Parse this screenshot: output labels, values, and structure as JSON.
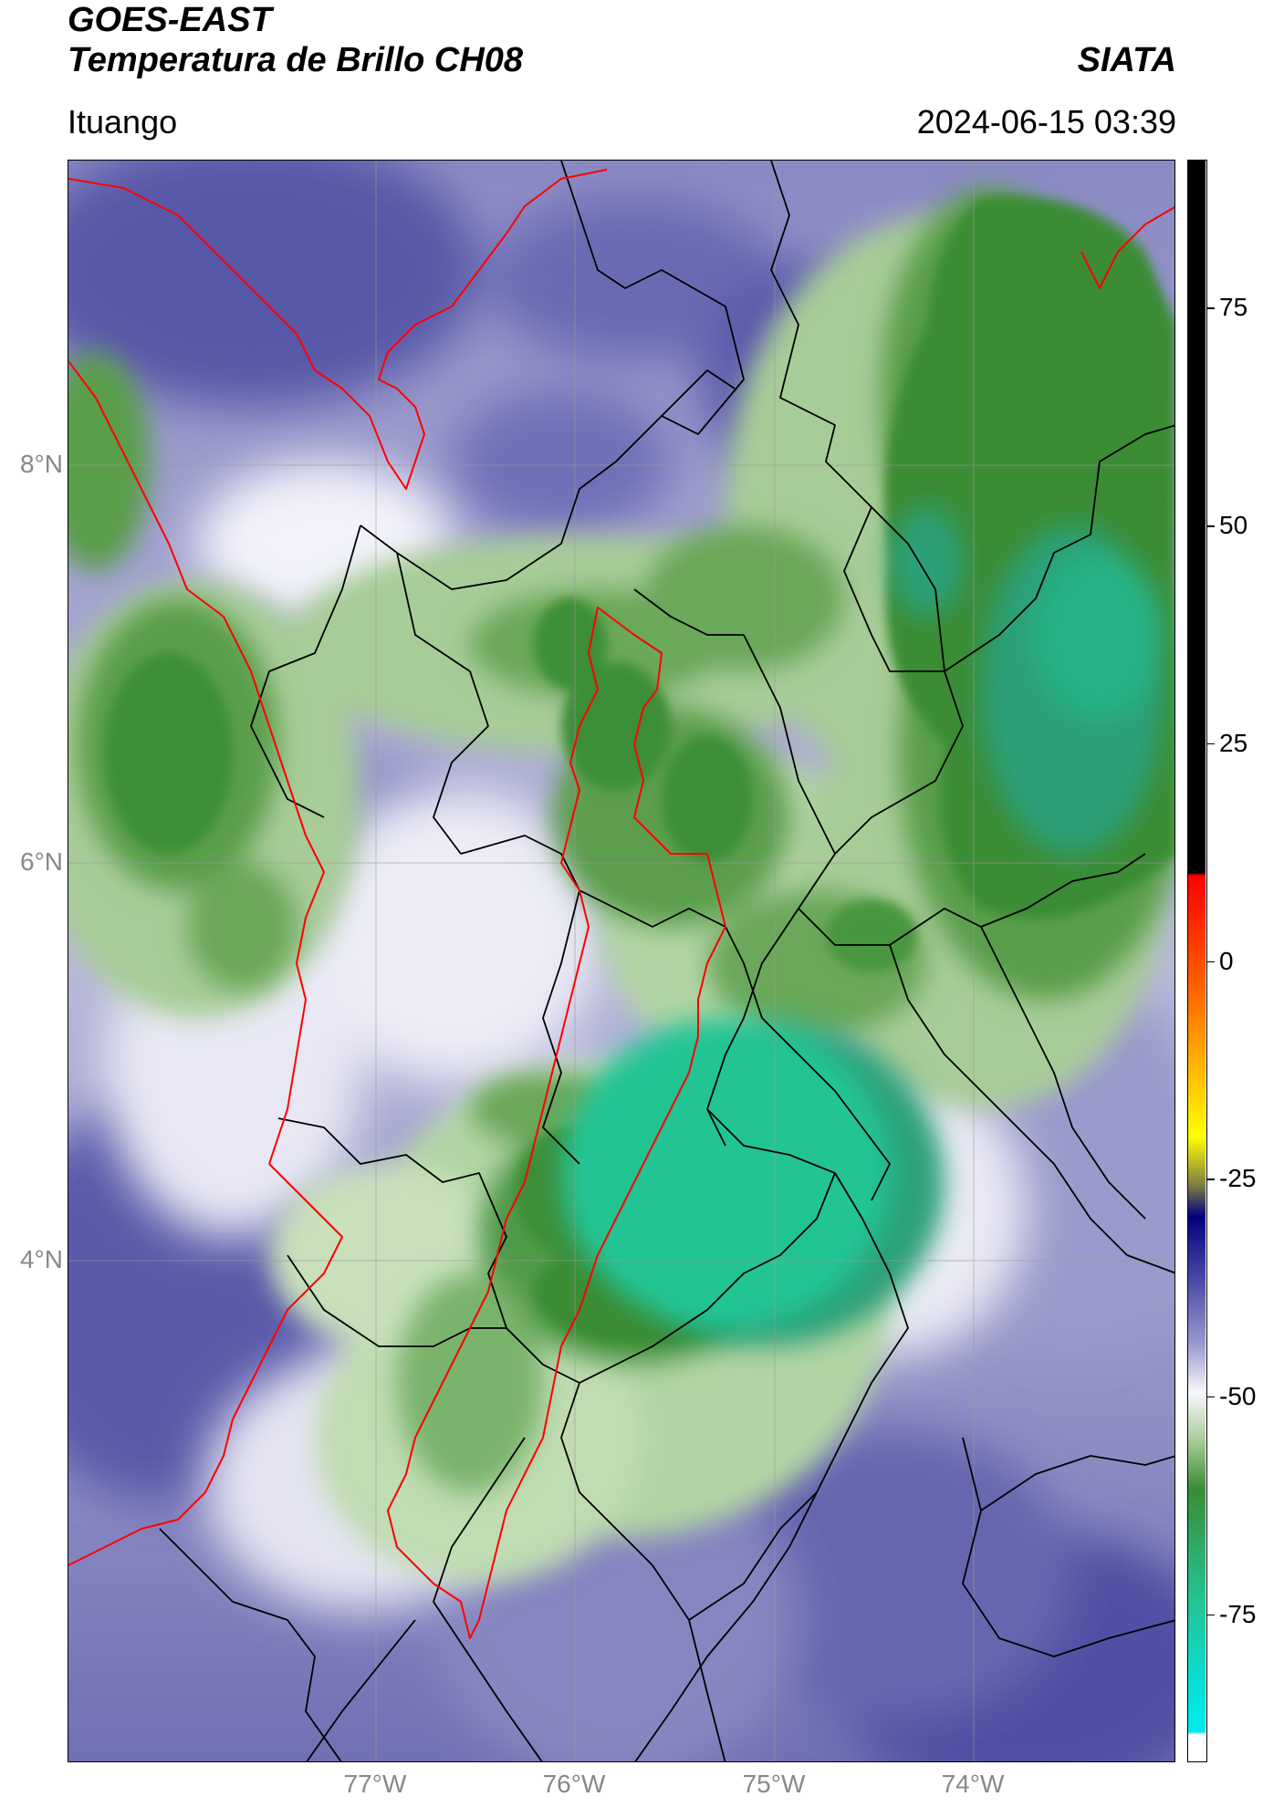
{
  "header": {
    "satellite": "GOES-EAST",
    "product": "Temperatura de Brillo CH08",
    "organization": "SIATA",
    "location": "Ituango",
    "timestamp": "2024-06-15 03:39"
  },
  "map": {
    "latitude_labels": [
      "8°N",
      "6°N",
      "4°N"
    ],
    "longitude_labels": [
      "77°W",
      "76°W",
      "75°W",
      "74°W"
    ],
    "colors": {
      "cold_green": "#2e8b2e",
      "very_cold_teal": "#22c495",
      "warm_purple": "#5a5aa8",
      "light_lavender": "#b4b4d8",
      "border_black": "#000000",
      "antioquia_red": "#ff0000"
    }
  },
  "colorbar": {
    "tick_labels": [
      "75",
      "50",
      "25",
      "0",
      "-25",
      "-50",
      "-75"
    ],
    "tick_values": [
      75,
      50,
      25,
      0,
      -25,
      -50,
      -75
    ],
    "range": [
      -92,
      92
    ]
  }
}
